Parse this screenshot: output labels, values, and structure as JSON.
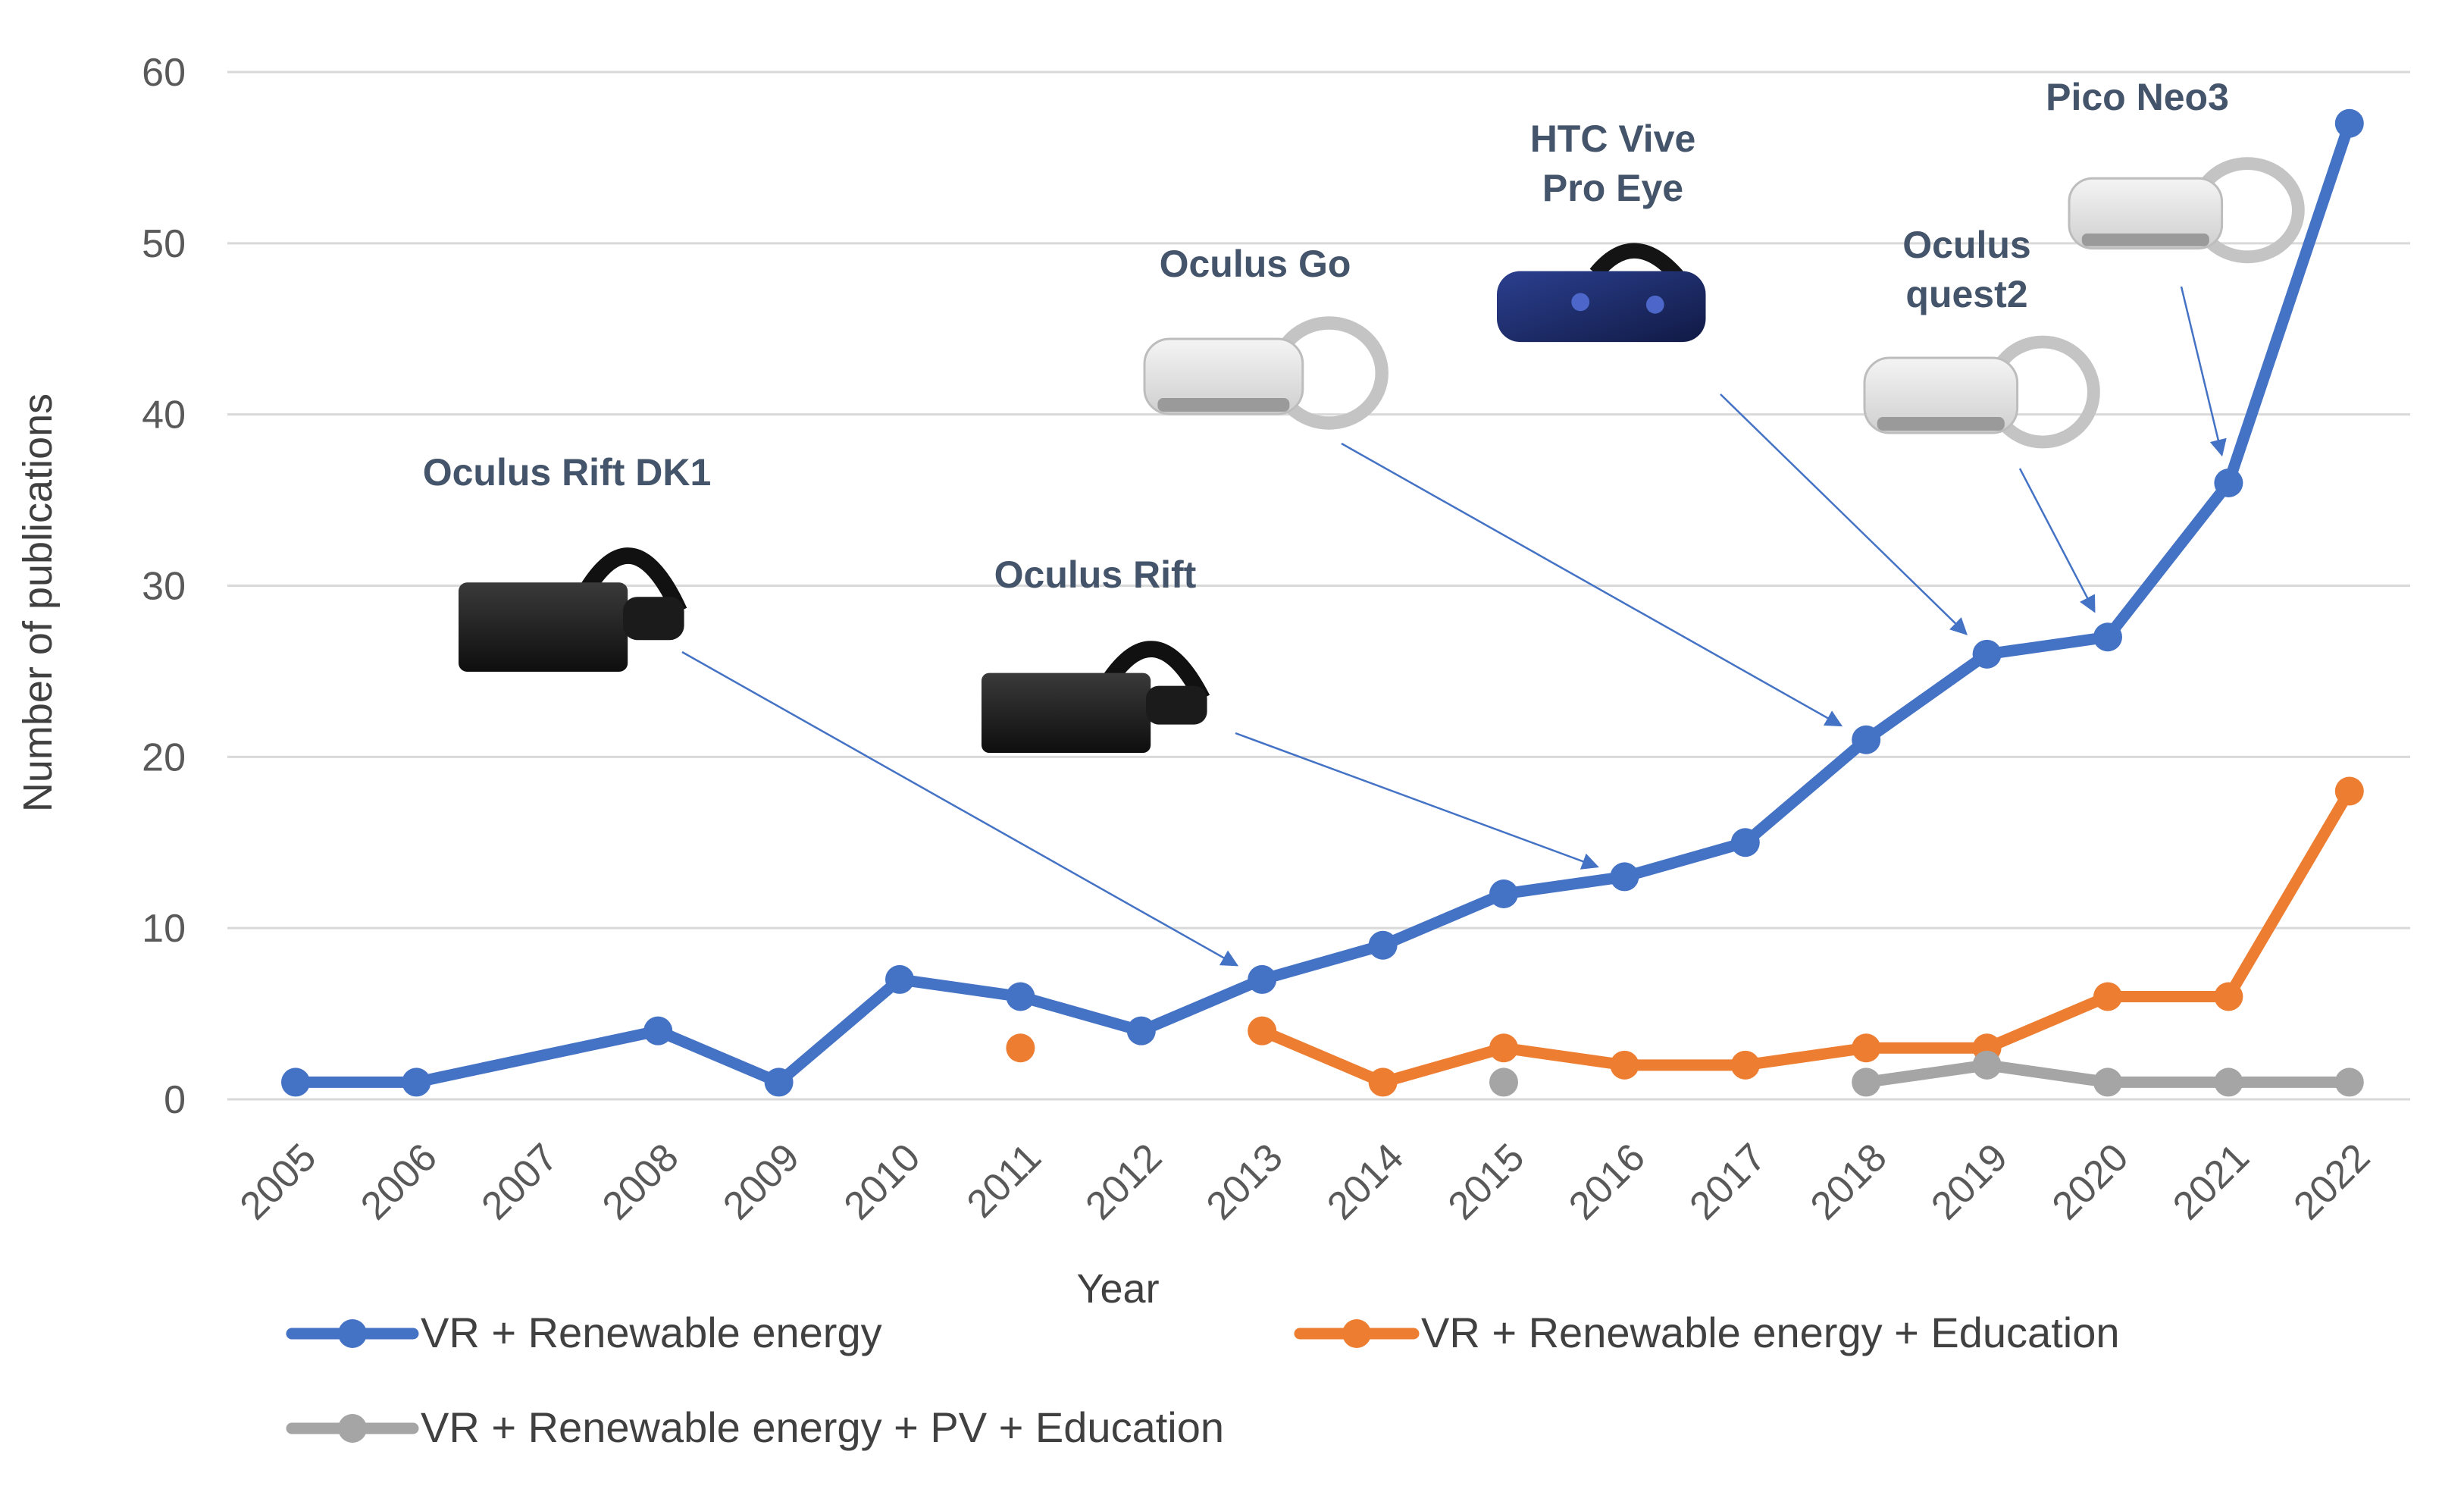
{
  "chart_data": {
    "type": "line",
    "title": "",
    "xlabel": "Year",
    "ylabel": "Number of publications",
    "ylim": [
      0,
      60
    ],
    "yticks": [
      "0",
      "10",
      "20",
      "30",
      "40",
      "50",
      "60"
    ],
    "grid": true,
    "legend_position": "bottom",
    "categories": [
      "2005",
      "2006",
      "2007",
      "2008",
      "2009",
      "2010",
      "2011",
      "2012",
      "2013",
      "2014",
      "2015",
      "2016",
      "2017",
      "2018",
      "2019",
      "2020",
      "2021",
      "2022"
    ],
    "series": [
      {
        "name": "VR + Renewable energy",
        "color": "#4472c4",
        "values": [
          1,
          1,
          null,
          4,
          1,
          7,
          6,
          4,
          7,
          9,
          12,
          13,
          15,
          21,
          26,
          27,
          36,
          57
        ]
      },
      {
        "name": "VR + Renewable energy + Education",
        "color": "#ed7d31",
        "values": [
          null,
          null,
          null,
          null,
          null,
          null,
          3,
          null,
          4,
          1,
          3,
          2,
          2,
          3,
          3,
          6,
          6,
          18
        ]
      },
      {
        "name": "VR + Renewable energy + PV + Education",
        "color": "#a5a5a5",
        "values": [
          null,
          null,
          null,
          null,
          null,
          null,
          null,
          null,
          null,
          null,
          1,
          null,
          null,
          1,
          2,
          1,
          1,
          1
        ]
      }
    ],
    "annotations": [
      {
        "label": [
          "Oculus Rift DK1"
        ],
        "target_year": "2013",
        "icon": "vr-headset-black-icon"
      },
      {
        "label": [
          "Oculus Rift"
        ],
        "target_year": "2016",
        "icon": "vr-headset-black-icon"
      },
      {
        "label": [
          "Oculus Go"
        ],
        "target_year": "2018",
        "icon": "vr-headset-white-icon"
      },
      {
        "label": [
          "HTC Vive",
          "Pro Eye"
        ],
        "target_year": "2019",
        "icon": "vr-headset-blue-icon"
      },
      {
        "label": [
          "Oculus",
          "quest2"
        ],
        "target_year": "2020",
        "icon": "vr-headset-white-icon"
      },
      {
        "label": [
          "Pico Neo3"
        ],
        "target_year": "2021",
        "icon": "vr-headset-white-icon"
      }
    ]
  }
}
